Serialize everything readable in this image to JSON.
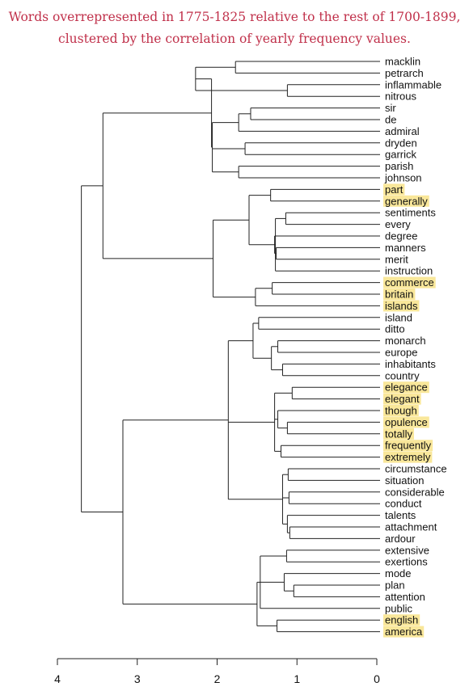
{
  "title": {
    "line1": "Words overrepresented in 1775-1825 relative to the rest of 1700-1899,",
    "line2": "clustered by the correlation of yearly frequency values."
  },
  "colors": {
    "title": "#c0304a",
    "highlight": "#f9e79a",
    "lines": "#222222",
    "text": "#111111"
  },
  "axis": {
    "ticks": [
      "4",
      "3",
      "2",
      "1",
      "0"
    ]
  },
  "leaves": [
    {
      "word": "macklin",
      "highlighted": false
    },
    {
      "word": "petrarch",
      "highlighted": false
    },
    {
      "word": "inflammable",
      "highlighted": false
    },
    {
      "word": "nitrous",
      "highlighted": false
    },
    {
      "word": "sir",
      "highlighted": false
    },
    {
      "word": "de",
      "highlighted": false
    },
    {
      "word": "admiral",
      "highlighted": false
    },
    {
      "word": "dryden",
      "highlighted": false
    },
    {
      "word": "garrick",
      "highlighted": false
    },
    {
      "word": "parish",
      "highlighted": false
    },
    {
      "word": "johnson",
      "highlighted": false
    },
    {
      "word": "part",
      "highlighted": true
    },
    {
      "word": "generally",
      "highlighted": true
    },
    {
      "word": "sentiments",
      "highlighted": false
    },
    {
      "word": "every",
      "highlighted": false
    },
    {
      "word": "degree",
      "highlighted": false
    },
    {
      "word": "manners",
      "highlighted": false
    },
    {
      "word": "merit",
      "highlighted": false
    },
    {
      "word": "instruction",
      "highlighted": false
    },
    {
      "word": "commerce",
      "highlighted": true
    },
    {
      "word": "britain",
      "highlighted": true
    },
    {
      "word": "islands",
      "highlighted": true
    },
    {
      "word": "island",
      "highlighted": false
    },
    {
      "word": "ditto",
      "highlighted": false
    },
    {
      "word": "monarch",
      "highlighted": false
    },
    {
      "word": "europe",
      "highlighted": false
    },
    {
      "word": "inhabitants",
      "highlighted": false
    },
    {
      "word": "country",
      "highlighted": false
    },
    {
      "word": "elegance",
      "highlighted": true
    },
    {
      "word": "elegant",
      "highlighted": true
    },
    {
      "word": "though",
      "highlighted": true
    },
    {
      "word": "opulence",
      "highlighted": true
    },
    {
      "word": "totally",
      "highlighted": true
    },
    {
      "word": "frequently",
      "highlighted": true
    },
    {
      "word": "extremely",
      "highlighted": true
    },
    {
      "word": "circumstance",
      "highlighted": false
    },
    {
      "word": "situation",
      "highlighted": false
    },
    {
      "word": "considerable",
      "highlighted": false
    },
    {
      "word": "conduct",
      "highlighted": false
    },
    {
      "word": "talents",
      "highlighted": false
    },
    {
      "word": "attachment",
      "highlighted": false
    },
    {
      "word": "ardour",
      "highlighted": false
    },
    {
      "word": "extensive",
      "highlighted": false
    },
    {
      "word": "exertions",
      "highlighted": false
    },
    {
      "word": "mode",
      "highlighted": false
    },
    {
      "word": "plan",
      "highlighted": false
    },
    {
      "word": "attention",
      "highlighted": false
    },
    {
      "word": "public",
      "highlighted": false
    },
    {
      "word": "english",
      "highlighted": true
    },
    {
      "word": "america",
      "highlighted": true
    }
  ],
  "tree": [
    3.7,
    [
      3.43,
      [
        2.07,
        [
          2.27,
          [
            1.77,
            "macklin",
            "petrarch"
          ],
          [
            1.12,
            "inflammable",
            "nitrous"
          ]
        ],
        [
          2.06,
          [
            1.73,
            [
              1.58,
              "sir",
              "de"
            ],
            "admiral"
          ],
          [
            1.65,
            "dryden",
            "garrick"
          ],
          [
            1.73,
            "parish",
            "johnson"
          ]
        ]
      ],
      [
        2.05,
        [
          1.6,
          [
            1.33,
            "part",
            "generally"
          ],
          [
            1.27,
            [
              1.14,
              "sentiments",
              "every"
            ],
            [
              1.28,
              "degree",
              [
                1.26,
                "manners",
                "merit"
              ]
            ],
            "instruction"
          ]
        ],
        [
          1.52,
          [
            1.31,
            "commerce",
            "britain"
          ],
          "islands"
        ]
      ]
    ],
    [
      3.18,
      [
        1.86,
        [
          1.55,
          [
            1.48,
            "island",
            "ditto"
          ],
          [
            1.32,
            [
              1.24,
              "monarch",
              "europe"
            ],
            [
              1.18,
              "inhabitants",
              "country"
            ]
          ]
        ],
        [
          1.28,
          [
            1.06,
            "elegance",
            "elegant"
          ],
          [
            1.24,
            "though",
            [
              1.12,
              "opulence",
              "totally"
            ]
          ],
          [
            1.2,
            "frequently",
            "extremely"
          ]
        ],
        [
          1.18,
          [
            1.11,
            "circumstance",
            "situation"
          ],
          [
            1.1,
            "considerable",
            "conduct"
          ],
          [
            1.12,
            "talents",
            [
              1.09,
              "attachment",
              "ardour"
            ]
          ]
        ]
      ],
      [
        1.5,
        [
          1.46,
          [
            1.13,
            "extensive",
            "exertions"
          ],
          [
            1.16,
            "mode",
            [
              1.04,
              "plan",
              "attention"
            ]
          ],
          "public"
        ],
        [
          1.25,
          "english",
          "america"
        ]
      ]
    ]
  ]
}
